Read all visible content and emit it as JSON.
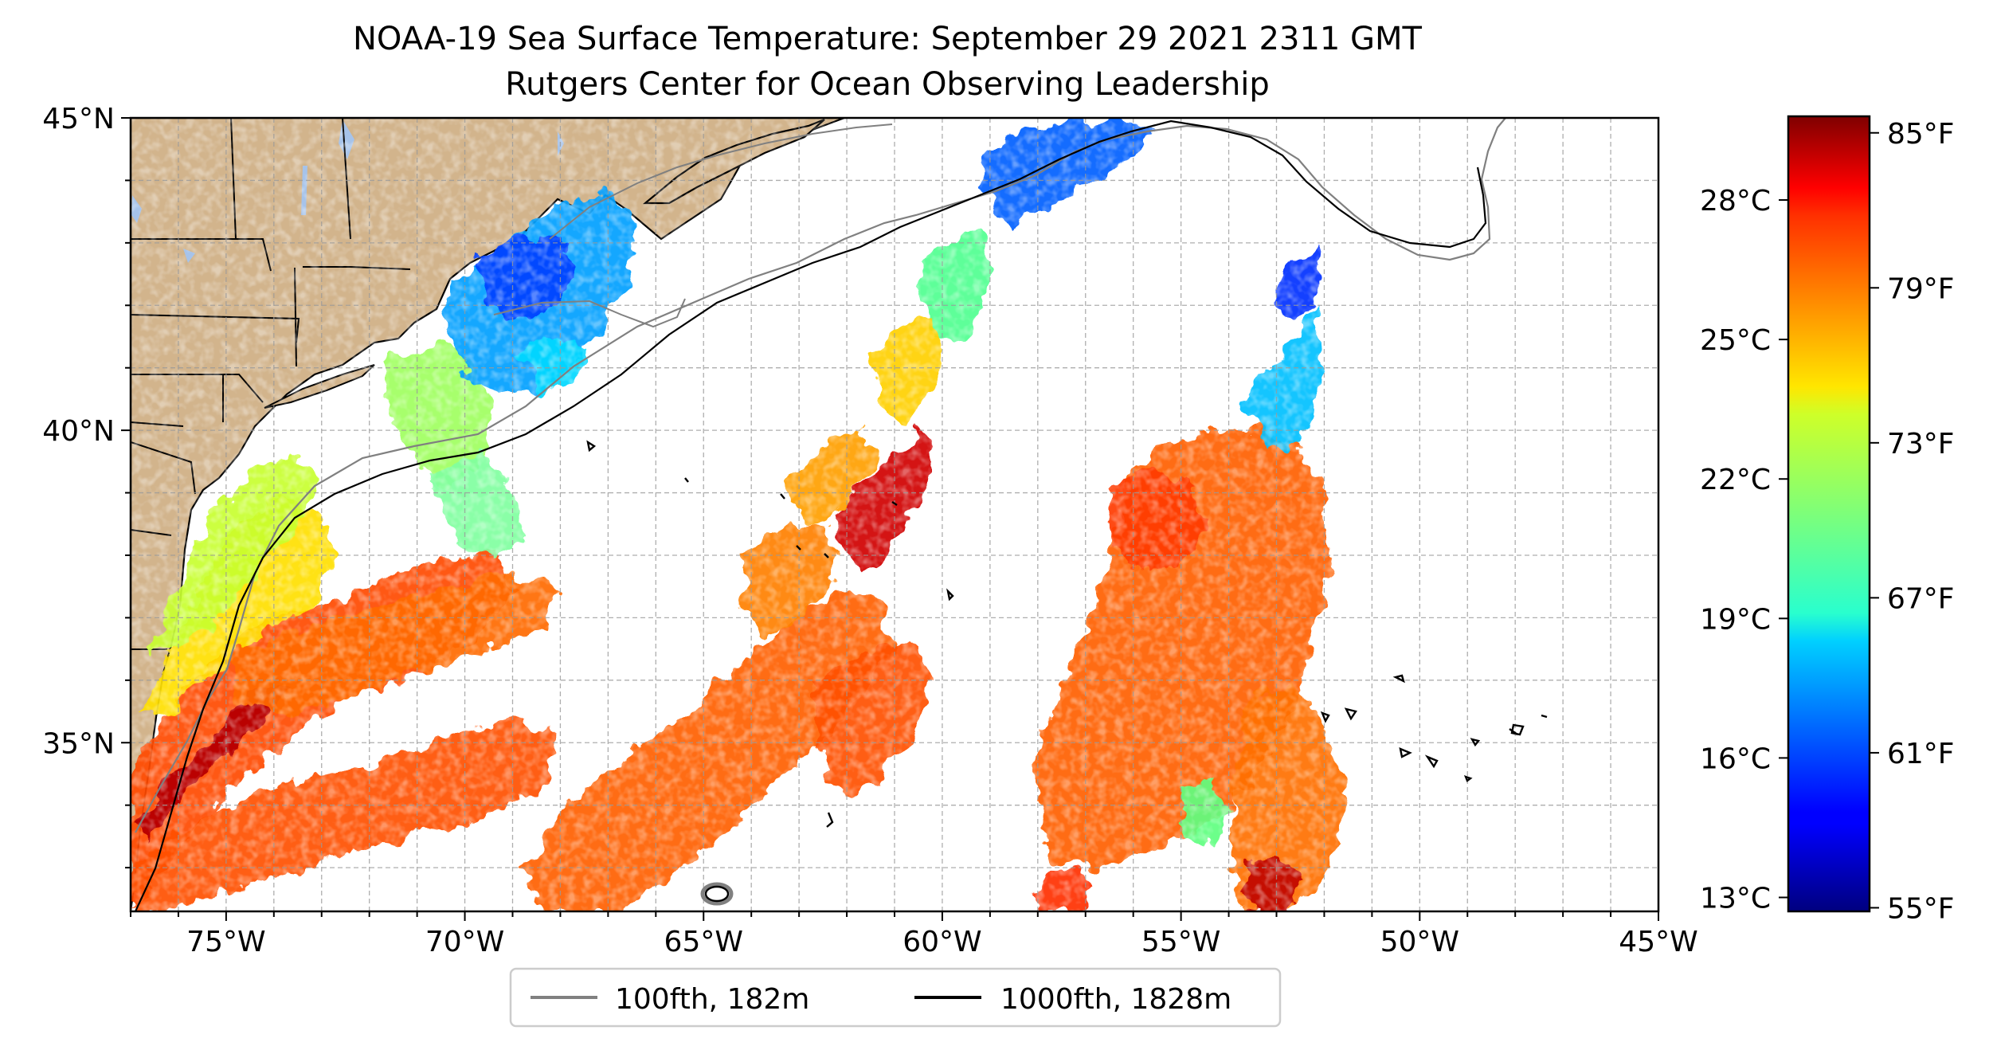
{
  "title": {
    "line1": "NOAA-19 Sea Surface Temperature: September 29 2021 2311 GMT",
    "line2": "Rutgers Center for Ocean Observing Leadership"
  },
  "map": {
    "lon_range": [
      -77,
      -45
    ],
    "lat_range": [
      32.3,
      45
    ],
    "x_ticks": [
      {
        "lon": -75,
        "label": "75°W"
      },
      {
        "lon": -70,
        "label": "70°W"
      },
      {
        "lon": -65,
        "label": "65°W"
      },
      {
        "lon": -60,
        "label": "60°W"
      },
      {
        "lon": -55,
        "label": "55°W"
      },
      {
        "lon": -50,
        "label": "50°W"
      },
      {
        "lon": -45,
        "label": "45°W"
      }
    ],
    "y_ticks": [
      {
        "lat": 45,
        "label": "45°N"
      },
      {
        "lat": 40,
        "label": "40°N"
      },
      {
        "lat": 35,
        "label": "35°N"
      }
    ],
    "grid": true,
    "grid_spacing_deg": 1,
    "colors": {
      "land": "#d2b48c",
      "lakes": "#a6c3ea",
      "no_data": "#ffffff",
      "isobath_100fth": "#808080",
      "isobath_1000fth": "#000000"
    }
  },
  "legend": {
    "placement": "bottom-center",
    "items": [
      {
        "label": "100fth, 182m",
        "color": "#808080"
      },
      {
        "label": "1000fth, 1828m",
        "color": "#000000"
      }
    ]
  },
  "colorbar": {
    "colormap": "jet",
    "range_c": [
      12.7,
      29.8
    ],
    "celsius_ticks": [
      {
        "value": 13,
        "label": "13°C"
      },
      {
        "value": 16,
        "label": "16°C"
      },
      {
        "value": 19,
        "label": "19°C"
      },
      {
        "value": 22,
        "label": "22°C"
      },
      {
        "value": 25,
        "label": "25°C"
      },
      {
        "value": 28,
        "label": "28°C"
      }
    ],
    "fahrenheit_ticks": [
      {
        "value": 55,
        "label": "55°F"
      },
      {
        "value": 61,
        "label": "61°F"
      },
      {
        "value": 67,
        "label": "67°F"
      },
      {
        "value": 73,
        "label": "73°F"
      },
      {
        "value": 79,
        "label": "79°F"
      },
      {
        "value": 85,
        "label": "85°F"
      }
    ]
  }
}
